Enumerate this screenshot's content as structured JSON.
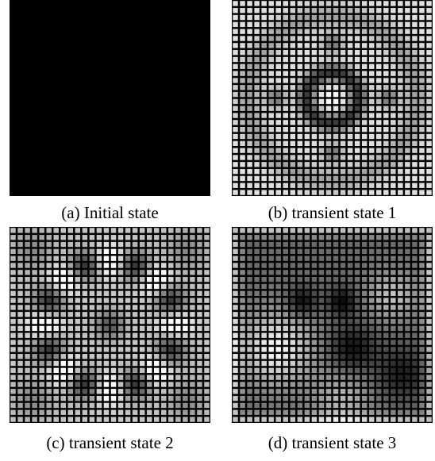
{
  "figure": {
    "panels": [
      {
        "id": "a",
        "caption": "(a) Initial state",
        "pattern": "blank"
      },
      {
        "id": "b",
        "caption": "(b) transient state 1",
        "pattern": "transient-1"
      },
      {
        "id": "c",
        "caption": "(c) transient state 2",
        "pattern": "transient-2"
      },
      {
        "id": "d",
        "caption": "(d) transient state 3",
        "pattern": "transient-3"
      }
    ],
    "colors": {
      "background": "#000000",
      "cell_bright": "#ffffff"
    }
  }
}
